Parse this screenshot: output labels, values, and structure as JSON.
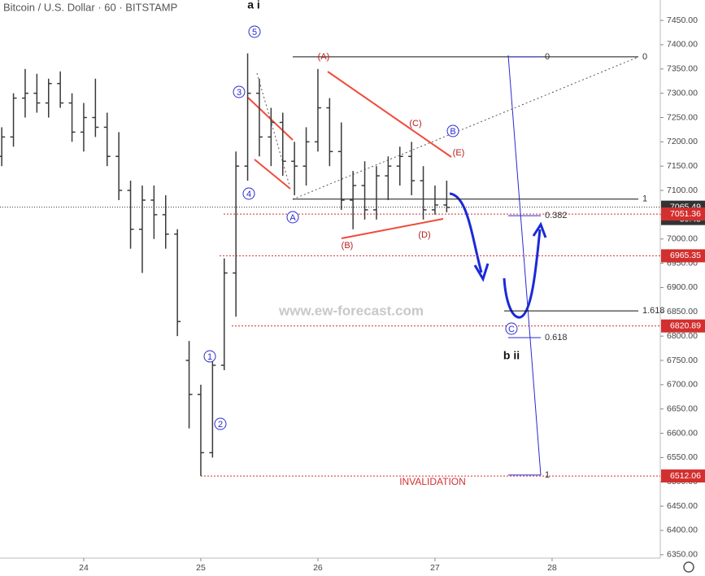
{
  "chart_data": {
    "type": "ohlc",
    "title": "Bitcoin / U.S. Dollar · 60 · BITSTAMP",
    "color": "#3a3a3a",
    "x": [
      23.3,
      23.4,
      23.5,
      23.6,
      23.7,
      23.8,
      23.9,
      24.0,
      24.1,
      24.2,
      24.3,
      24.4,
      24.5,
      24.6,
      24.7,
      24.8,
      24.9,
      25.0,
      25.1,
      25.2,
      25.3,
      25.4,
      25.5,
      25.6,
      25.7,
      25.8,
      25.9,
      26.0,
      26.1,
      26.2,
      26.3,
      26.4,
      26.5,
      26.6,
      26.7,
      26.8,
      26.9,
      27.0,
      27.1
    ],
    "open": [
      7170,
      7210,
      7290,
      7300,
      7280,
      7320,
      7280,
      7220,
      7250,
      7230,
      7170,
      7100,
      7020,
      7080,
      7050,
      7010,
      6750,
      6680,
      6560,
      6740,
      6930,
      7150,
      7300,
      7210,
      7240,
      7160,
      7150,
      7200,
      7270,
      7180,
      7080,
      7110,
      7060,
      7130,
      7150,
      7170,
      7120,
      7060,
      7070
    ],
    "high": [
      7230,
      7300,
      7350,
      7340,
      7330,
      7345,
      7300,
      7280,
      7330,
      7260,
      7220,
      7120,
      7110,
      7110,
      7090,
      7020,
      6790,
      6700,
      6760,
      6960,
      7180,
      7382,
      7330,
      7270,
      7260,
      7200,
      7230,
      7350,
      7290,
      7240,
      7140,
      7160,
      7150,
      7170,
      7190,
      7200,
      7150,
      7110,
      7120
    ],
    "low": [
      7150,
      7190,
      7250,
      7260,
      7250,
      7270,
      7200,
      7180,
      7210,
      7150,
      7080,
      6980,
      6930,
      7000,
      6980,
      6800,
      6610,
      6512,
      6550,
      6730,
      6840,
      7120,
      7170,
      7150,
      7130,
      7090,
      7110,
      7180,
      7150,
      7060,
      7020,
      7040,
      7040,
      7080,
      7110,
      7090,
      7040,
      7050,
      7055
    ],
    "close": [
      7210,
      7290,
      7300,
      7280,
      7320,
      7280,
      7220,
      7250,
      7230,
      7170,
      7100,
      7020,
      7080,
      7050,
      7010,
      6830,
      6680,
      6560,
      6740,
      6930,
      7150,
      7300,
      7210,
      7240,
      7160,
      7150,
      7200,
      7270,
      7180,
      7080,
      7110,
      7060,
      7130,
      7150,
      7170,
      7120,
      7060,
      7070,
      7065
    ],
    "xlim": [
      23.285,
      28.924
    ],
    "xticks": [
      24,
      25,
      26,
      27,
      28
    ],
    "ylim": [
      6343,
      7492
    ],
    "yticks": [
      {
        "value": 6350,
        "label": "6350.00"
      },
      {
        "value": 6400,
        "label": "6400.00"
      },
      {
        "value": 6450,
        "label": "6450.00"
      },
      {
        "value": 6500,
        "label": "6500.00"
      },
      {
        "value": 6550,
        "label": "6550.00"
      },
      {
        "value": 6600,
        "label": "6600.00"
      },
      {
        "value": 6650,
        "label": "6650.00"
      },
      {
        "value": 6700,
        "label": "6700.00"
      },
      {
        "value": 6750,
        "label": "6750.00"
      },
      {
        "value": 6800,
        "label": "6800.00"
      },
      {
        "value": 6850,
        "label": "6850.00"
      },
      {
        "value": 6900,
        "label": "6900.00"
      },
      {
        "value": 6950,
        "label": "6950.00"
      },
      {
        "value": 7000,
        "label": "7000.00"
      },
      {
        "value": 7050,
        "label": "7050.00"
      },
      {
        "value": 7100,
        "label": "7100.00"
      },
      {
        "value": 7150,
        "label": "7150.00"
      },
      {
        "value": 7200,
        "label": "7200.00"
      },
      {
        "value": 7250,
        "label": "7250.00"
      },
      {
        "value": 7300,
        "label": "7300.00"
      },
      {
        "value": 7350,
        "label": "7350.00"
      },
      {
        "value": 7400,
        "label": "7400.00"
      },
      {
        "value": 7450,
        "label": "7450.00"
      }
    ],
    "grid": false,
    "price_labels": [
      {
        "value": 7065.49,
        "color": "#333333"
      },
      {
        "value": 7051.36,
        "color": "#d32f2f"
      },
      {
        "value": 6965.35,
        "color": "#d32f2f"
      },
      {
        "value": 6820.89,
        "color": "#d32f2f"
      },
      {
        "value": 6512.06,
        "color": "#d32f2f"
      }
    ],
    "countdown": "30:45",
    "fib_levels": [
      {
        "label": "0",
        "value": 7375,
        "color": "#111111"
      },
      {
        "label": "1",
        "value": 7082,
        "color": "#111111"
      },
      {
        "label": "1.618",
        "value": 6852,
        "color": "#111111"
      },
      {
        "label": "0",
        "value": 7375,
        "color": "#2a2ad0"
      },
      {
        "label": "0.382",
        "value": 7048,
        "color": "#2a2ad0"
      },
      {
        "label": "0.618",
        "value": 6797,
        "color": "#2a2ad0"
      },
      {
        "label": "1",
        "value": 6514,
        "color": "#2a2ad0"
      }
    ],
    "wave_labels": [
      "1",
      "2",
      "3",
      "4",
      "5"
    ],
    "circle_letters": [
      "A",
      "B",
      "C"
    ],
    "bracket_labels": [
      "(A)",
      "(B)",
      "(C)",
      "(D)",
      "(E)"
    ],
    "degree_labels": [
      "a i",
      "b ii"
    ],
    "invalidation": "INVALIDATION",
    "watermark": "www.ew-forecast.com"
  }
}
